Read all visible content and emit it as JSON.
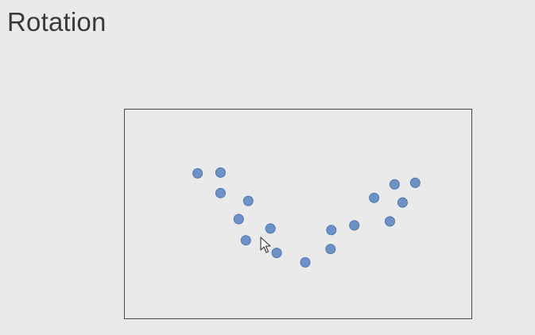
{
  "slide": {
    "title": "Rotation"
  },
  "chart_data": {
    "type": "scatter",
    "title": "",
    "xlabel": "",
    "ylabel": "",
    "grid": false,
    "legend": "none",
    "xlim": [
      0,
      438
    ],
    "ylim": [
      0,
      265
    ],
    "marker_color": "#6d93c6",
    "marker_edge_color": "#4d76ad",
    "points": [
      {
        "x": 92,
        "y": 184
      },
      {
        "x": 121,
        "y": 185
      },
      {
        "x": 121,
        "y": 159
      },
      {
        "x": 156,
        "y": 149
      },
      {
        "x": 144,
        "y": 126
      },
      {
        "x": 184,
        "y": 114
      },
      {
        "x": 153,
        "y": 99
      },
      {
        "x": 192,
        "y": 83
      },
      {
        "x": 228,
        "y": 71
      },
      {
        "x": 260,
        "y": 88
      },
      {
        "x": 261,
        "y": 112
      },
      {
        "x": 290,
        "y": 118
      },
      {
        "x": 315,
        "y": 153
      },
      {
        "x": 341,
        "y": 170
      },
      {
        "x": 367,
        "y": 172
      },
      {
        "x": 351,
        "y": 147
      },
      {
        "x": 335,
        "y": 123
      }
    ]
  },
  "cursor": {
    "icon": "arrow-cursor-icon"
  }
}
